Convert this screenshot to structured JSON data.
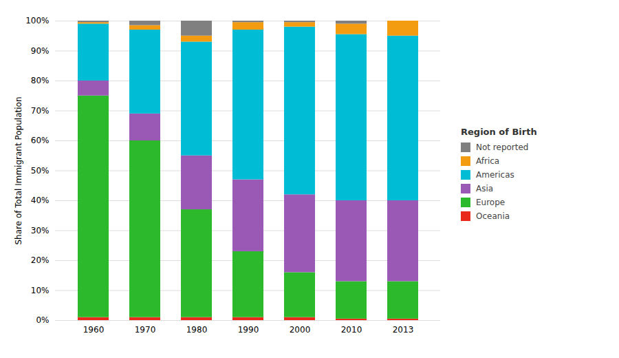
{
  "chart_data": {
    "type": "bar",
    "stacked": true,
    "categories": [
      "1960",
      "1970",
      "1980",
      "1990",
      "2000",
      "2010",
      "2013"
    ],
    "series": [
      {
        "name": "Oceania",
        "color": "#e8291c",
        "values": [
          1.0,
          1.0,
          1.0,
          1.0,
          1.0,
          0.5,
          0.5
        ]
      },
      {
        "name": "Europe",
        "color": "#2cba2c",
        "values": [
          74.0,
          59.0,
          36.0,
          22.0,
          15.0,
          12.5,
          12.5
        ]
      },
      {
        "name": "Asia",
        "color": "#9b59b6",
        "values": [
          5.0,
          9.0,
          18.0,
          24.0,
          26.0,
          27.0,
          27.0
        ]
      },
      {
        "name": "Americas",
        "color": "#00bcd4",
        "values": [
          19.0,
          28.0,
          38.0,
          50.0,
          56.0,
          55.5,
          55.0
        ]
      },
      {
        "name": "Africa",
        "color": "#f39c12",
        "values": [
          0.5,
          1.5,
          2.0,
          2.5,
          1.5,
          3.5,
          5.0
        ]
      },
      {
        "name": "Not reported",
        "color": "#808080",
        "values": [
          0.5,
          1.5,
          5.0,
          0.5,
          0.5,
          1.0,
          0.0
        ]
      }
    ],
    "ylabel": "Share of Total Immigrant Population",
    "legend_title": "Region of Birth",
    "legend": "right",
    "ylim": [
      0,
      100
    ],
    "yticks": [
      {
        "value": 0,
        "label": "0%"
      },
      {
        "value": 10,
        "label": "10%"
      },
      {
        "value": 20,
        "label": "20%"
      },
      {
        "value": 30,
        "label": "30%"
      },
      {
        "value": 40,
        "label": "40%"
      },
      {
        "value": 50,
        "label": "50%"
      },
      {
        "value": 60,
        "label": "60%"
      },
      {
        "value": 70,
        "label": "70%"
      },
      {
        "value": 80,
        "label": "80%"
      },
      {
        "value": 90,
        "label": "90%"
      },
      {
        "value": 100,
        "label": "100%"
      }
    ],
    "grid": true
  }
}
